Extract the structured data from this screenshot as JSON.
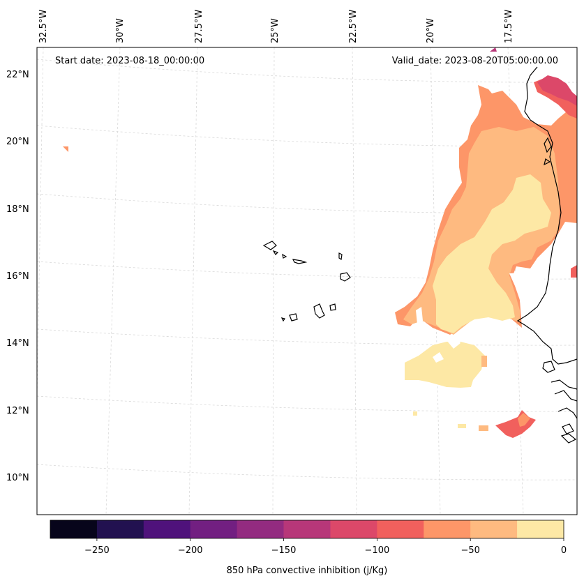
{
  "annotations": {
    "start_date": "Start date: 2023-08-18_00:00:00",
    "valid_date": "Valid_date: 2023-08-20T05:00:00.00"
  },
  "longitude_labels": [
    "32.5°W",
    "30°W",
    "27.5°W",
    "25°W",
    "22.5°W",
    "20°W",
    "17.5°W"
  ],
  "latitude_labels": [
    "22°N",
    "20°N",
    "18°N",
    "16°N",
    "14°N",
    "12°N",
    "10°N"
  ],
  "colorbar": {
    "label": "850 hPa convective inhibition (j/Kg)",
    "ticks": [
      "−250",
      "−200",
      "−150",
      "−100",
      "−50",
      "0"
    ],
    "bounds": [
      -275,
      -250,
      -225,
      -200,
      -175,
      -150,
      -125,
      -100,
      -75,
      -50,
      -25,
      0
    ],
    "colors": [
      "#07051b",
      "#221150",
      "#4f127b",
      "#721f81",
      "#932b80",
      "#b73779",
      "#dc4869",
      "#f1605d",
      "#fd9668",
      "#feba80",
      "#fde8a5"
    ]
  },
  "colors": {
    "coast": "#000000",
    "grid": "#d9d9d9"
  }
}
